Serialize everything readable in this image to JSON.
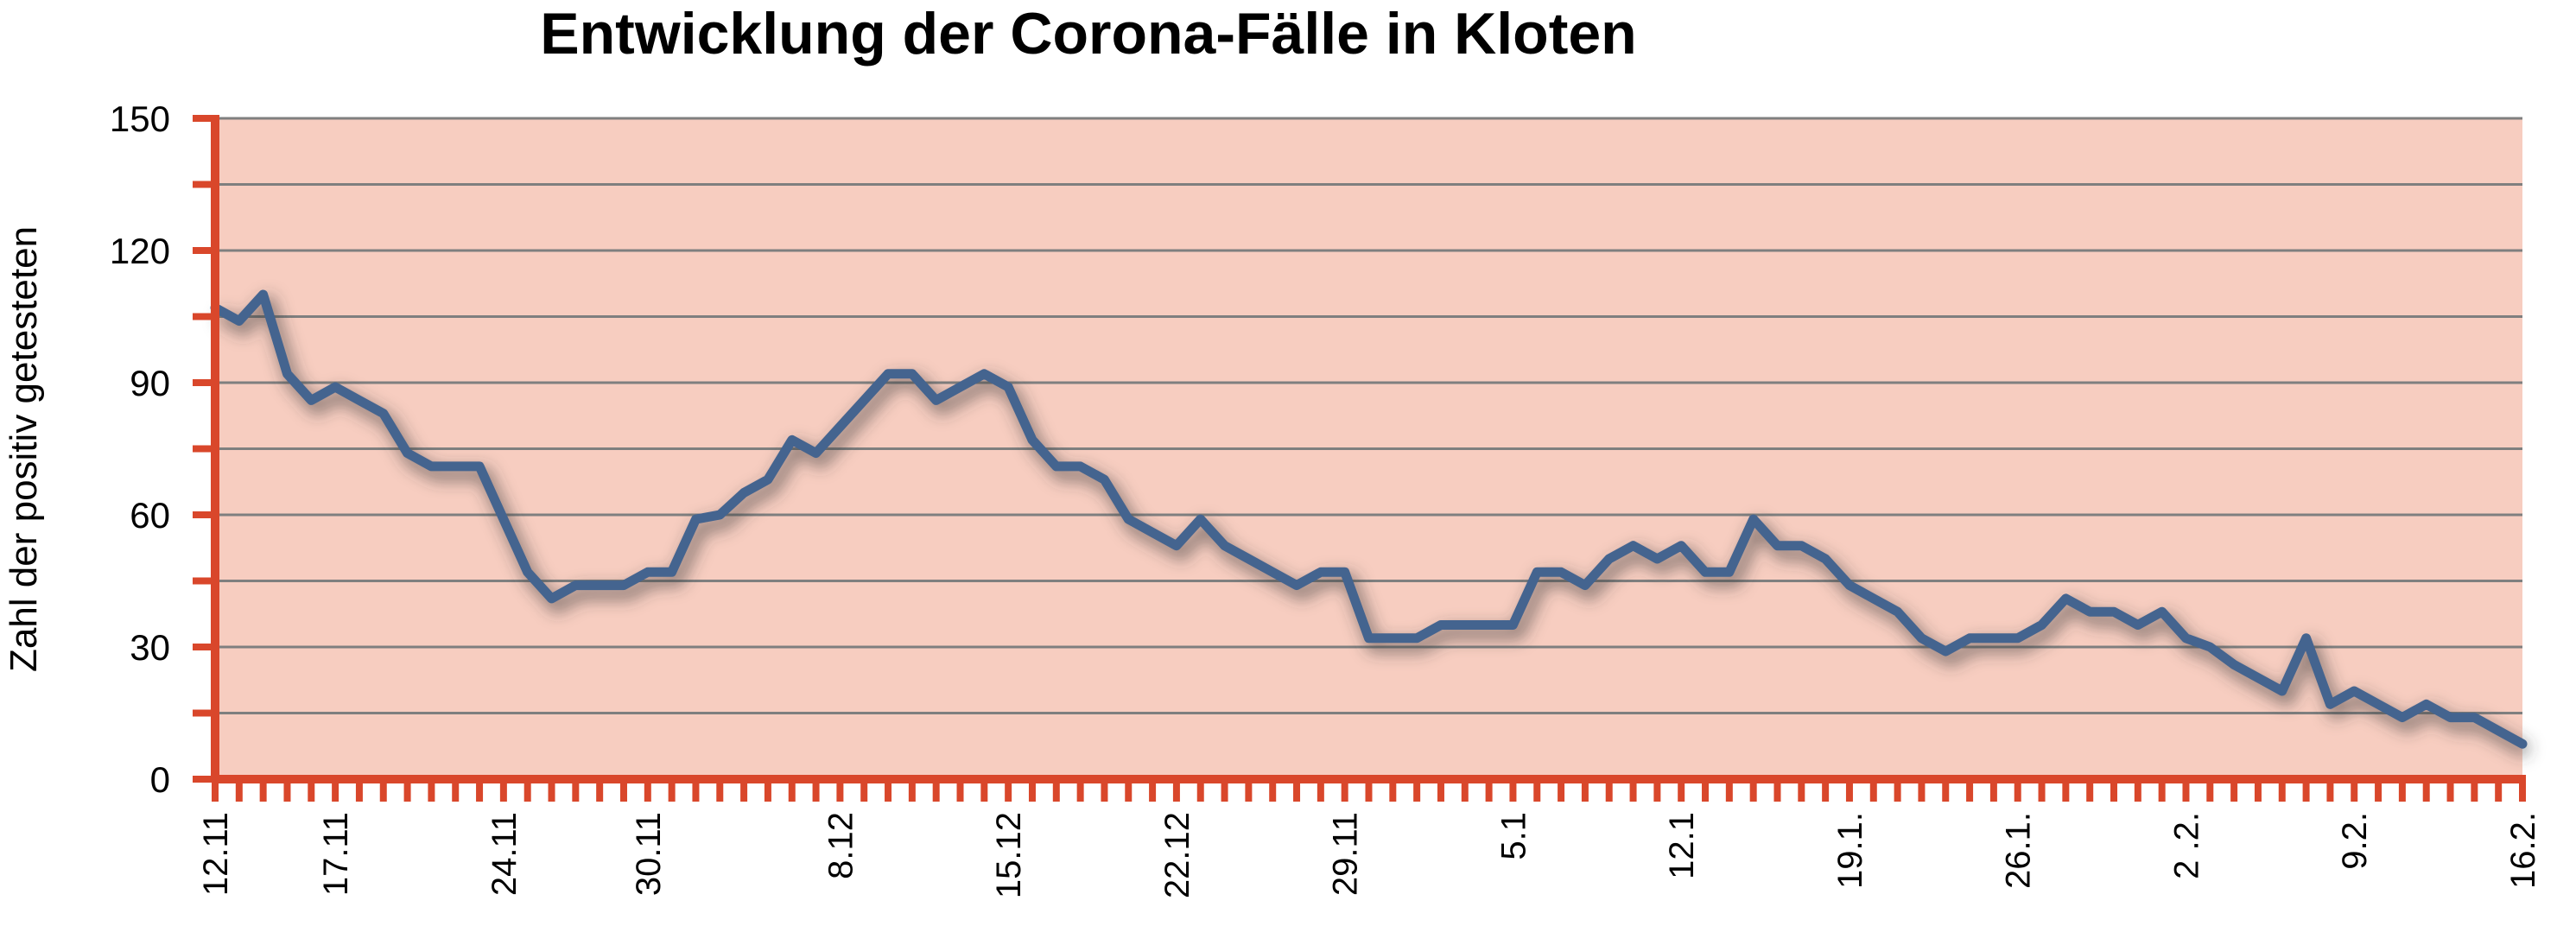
{
  "chart_data": {
    "type": "line",
    "title": "Entwicklung der Corona-Fälle in Kloten",
    "xlabel": "",
    "ylabel": "Zahl der positiv getesteten",
    "ylim": [
      0,
      150
    ],
    "y_ticks": [
      0,
      30,
      60,
      90,
      120,
      150
    ],
    "grid": true,
    "legend": "none",
    "colors": {
      "plot_background": "#f7cdc0",
      "axis": "#d9472b",
      "grid": "#7f7f7f",
      "line": "#44648f",
      "shadow": "#3a3a3a"
    },
    "x_tick_labels": [
      "12.11",
      "17.11",
      "24.11",
      "30.11",
      "8.12",
      "15.12",
      "22.12",
      "29.11",
      "5.1",
      "12.1",
      "19.1.",
      "26.1.",
      "2 .2.",
      "9.2.",
      "16.2."
    ],
    "x_tick_positions": [
      0,
      5,
      12,
      18,
      26,
      33,
      40,
      47,
      54,
      61,
      68,
      75,
      82,
      89,
      96
    ],
    "x": [
      0,
      1,
      2,
      3,
      4,
      5,
      6,
      7,
      8,
      9,
      10,
      11,
      12,
      13,
      14,
      15,
      16,
      17,
      18,
      19,
      20,
      21,
      22,
      23,
      24,
      25,
      26,
      27,
      28,
      29,
      30,
      31,
      32,
      33,
      34,
      35,
      36,
      37,
      38,
      39,
      40,
      41,
      42,
      43,
      44,
      45,
      46,
      47,
      48,
      49,
      50,
      51,
      52,
      53,
      54,
      55,
      56,
      57,
      58,
      59,
      60,
      61,
      62,
      63,
      64,
      65,
      66,
      67,
      68,
      69,
      70,
      71,
      72,
      73,
      74,
      75,
      76,
      77,
      78,
      79,
      80,
      81,
      82,
      83,
      84,
      85,
      86,
      87,
      88,
      89,
      90,
      91,
      92,
      93,
      94,
      95,
      96
    ],
    "series": [
      {
        "values": [
          107,
          104,
          110,
          92,
          86,
          89,
          86,
          83,
          74,
          71,
          71,
          71,
          59,
          47,
          41,
          44,
          44,
          44,
          47,
          47,
          59,
          60,
          65,
          68,
          77,
          74,
          80,
          86,
          92,
          92,
          86,
          89,
          92,
          89,
          77,
          71,
          71,
          68,
          59,
          56,
          53,
          59,
          53,
          50,
          47,
          44,
          47,
          47,
          32,
          32,
          32,
          35,
          35,
          35,
          35,
          47,
          47,
          44,
          50,
          53,
          50,
          53,
          47,
          47,
          59,
          53,
          53,
          50,
          44,
          41,
          38,
          32,
          29,
          32,
          32,
          32,
          35,
          41,
          38,
          38,
          35,
          38,
          32,
          30,
          26,
          23,
          20,
          32,
          17,
          20,
          17,
          14,
          17,
          14,
          14,
          11,
          8
        ]
      }
    ]
  }
}
